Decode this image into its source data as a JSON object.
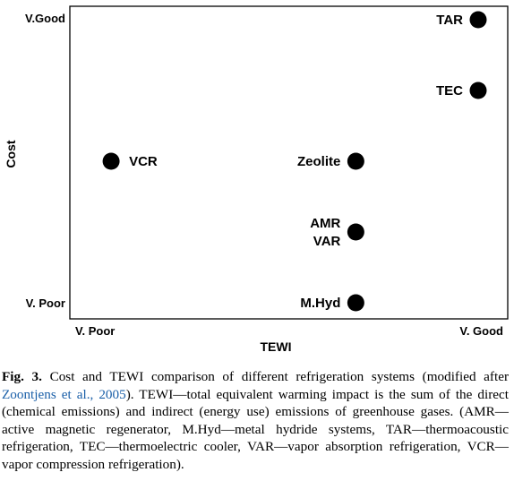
{
  "chart_data": {
    "type": "scatter",
    "xlabel": "TEWI",
    "ylabel": "Cost",
    "x_ticks": [
      "V. Poor",
      "V. Good"
    ],
    "y_ticks": [
      "V.Good",
      "V. Poor"
    ],
    "xlim": [
      0,
      1
    ],
    "ylim": [
      0,
      1
    ],
    "grid": false,
    "points": [
      {
        "label": "TAR",
        "x": 1.0,
        "y": 1.0,
        "label_side": "left"
      },
      {
        "label": "TEC",
        "x": 1.0,
        "y": 0.75,
        "label_side": "left"
      },
      {
        "label": "VCR",
        "x": 0.04,
        "y": 0.5,
        "label_side": "right"
      },
      {
        "label": "Zeolite",
        "x": 0.68,
        "y": 0.5,
        "label_side": "left"
      },
      {
        "label": "AMR\nVAR",
        "x": 0.68,
        "y": 0.25,
        "label_side": "left"
      },
      {
        "label": "M.Hyd",
        "x": 0.68,
        "y": 0.0,
        "label_side": "left"
      }
    ]
  },
  "caption": {
    "fig_label": "Fig. 3.",
    "text_before_ref": " Cost and TEWI comparison of different refrigeration systems (modified after ",
    "ref": "Zoontjens et al., 2005",
    "text_after_ref": "). TEWI—total equivalent warming impact is the sum of the direct (chemical emissions) and indirect (energy use) emissions of greenhouse gases. (AMR—active magnetic regenerator, M.Hyd—metal hydride systems, TAR—thermoacoustic refrigeration, TEC—thermoelectric cooler, VAR—vapor absorption refrigeration, VCR—vapor compression refrigeration)."
  }
}
